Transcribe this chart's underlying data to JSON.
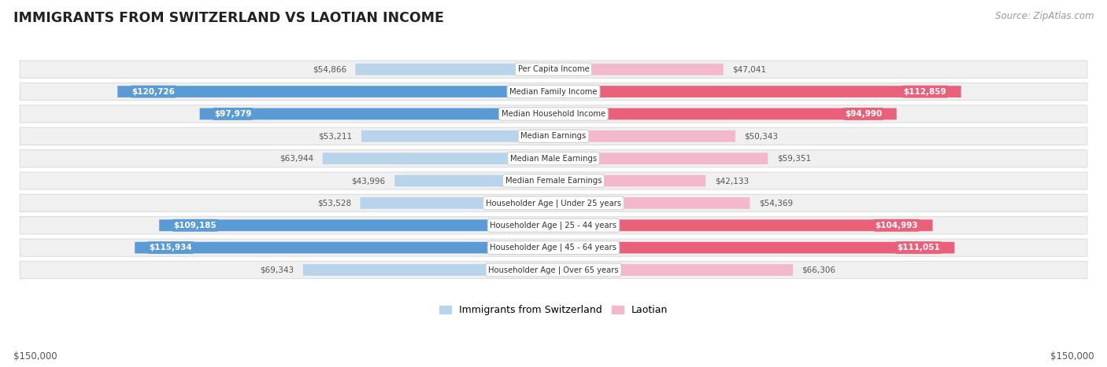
{
  "title": "IMMIGRANTS FROM SWITZERLAND VS LAOTIAN INCOME",
  "source": "Source: ZipAtlas.com",
  "categories": [
    "Per Capita Income",
    "Median Family Income",
    "Median Household Income",
    "Median Earnings",
    "Median Male Earnings",
    "Median Female Earnings",
    "Householder Age | Under 25 years",
    "Householder Age | 25 - 44 years",
    "Householder Age | 45 - 64 years",
    "Householder Age | Over 65 years"
  ],
  "switzerland_values": [
    54866,
    120726,
    97979,
    53211,
    63944,
    43996,
    53528,
    109185,
    115934,
    69343
  ],
  "laotian_values": [
    47041,
    112859,
    94990,
    50343,
    59351,
    42133,
    54369,
    104993,
    111051,
    66306
  ],
  "switzerland_labels": [
    "$54,866",
    "$120,726",
    "$97,979",
    "$53,211",
    "$63,944",
    "$43,996",
    "$53,528",
    "$109,185",
    "$115,934",
    "$69,343"
  ],
  "laotian_labels": [
    "$47,041",
    "$112,859",
    "$94,990",
    "$50,343",
    "$59,351",
    "$42,133",
    "$54,369",
    "$104,993",
    "$111,051",
    "$66,306"
  ],
  "max_value": 150000,
  "swiss_color_light": "#b8d4ea",
  "swiss_color_dark": "#5b9bd5",
  "laotian_color_light": "#f4b8cc",
  "laotian_color_dark": "#e8607a",
  "label_threshold": 80000,
  "bg_color": "#ffffff",
  "row_bg": "#f0f0f0",
  "row_border": "#dddddd",
  "label_text_dark": "#555555",
  "legend_swiss": "Immigrants from Switzerland",
  "legend_laotian": "Laotian",
  "xlabel_left": "$150,000",
  "xlabel_right": "$150,000"
}
